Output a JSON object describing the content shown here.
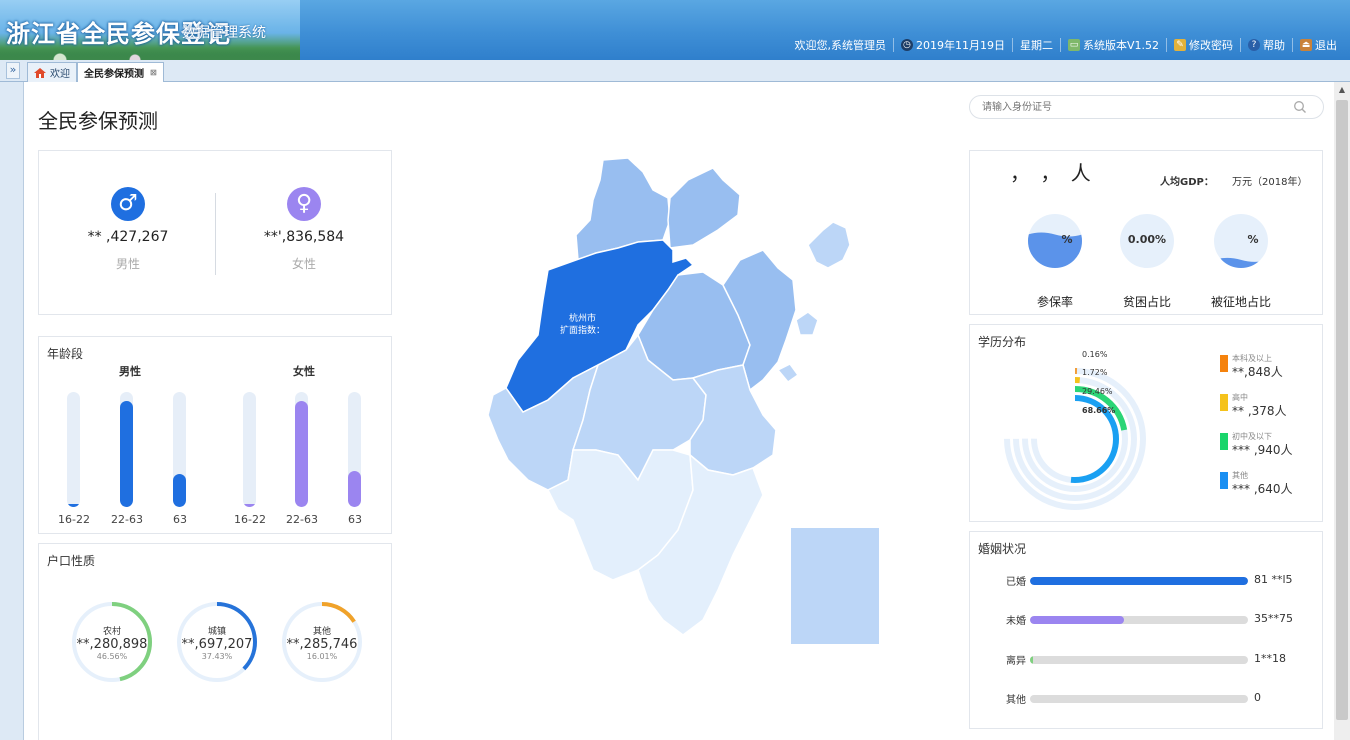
{
  "header": {
    "title": "浙江省全民参保登记",
    "subtitle": "数据管理系统",
    "welcome": "欢迎您,系统管理员",
    "date": "2019年11月19日",
    "weekday": "星期二",
    "version": "系统版本V1.52",
    "change_password": "修改密码",
    "help": "帮助",
    "logout": "退出"
  },
  "tabs": [
    {
      "label": "欢迎"
    },
    {
      "label": "全民参保预测"
    }
  ],
  "page_title": "全民参保预测",
  "gender": {
    "male": {
      "value": "** ,427,267",
      "label": "男性"
    },
    "female": {
      "value": "**',836,584",
      "label": "女性"
    },
    "colors": {
      "male": "#1f6fe0",
      "female": "#9b85f0"
    }
  },
  "age": {
    "title": "年龄段",
    "male_label": "男性",
    "female_label": "女性",
    "ticks": [
      "16-22",
      "22-63",
      "63"
    ],
    "male_fill": [
      0.03,
      0.92,
      0.29
    ],
    "female_fill": [
      0.03,
      0.92,
      0.31
    ]
  },
  "hukou": {
    "title": "户口性质",
    "items": [
      {
        "name": "农村",
        "value": "**,280,898",
        "pct": "46.56%",
        "fraction": 0.4656,
        "color": "#7fd07f"
      },
      {
        "name": "城镇",
        "value": "**,697,207",
        "pct": "37.43%",
        "fraction": 0.3743,
        "color": "#2673d9"
      },
      {
        "name": "其他",
        "value": "**,285,746",
        "pct": "16.01%",
        "fraction": 0.1601,
        "color": "#f0a22a"
      }
    ]
  },
  "map": {
    "city": "杭州市",
    "expansion_label": "扩面指数："
  },
  "search": {
    "placeholder": "请输入身份证号"
  },
  "stats": {
    "population": "，  ，  人",
    "gdp_label": "人均GDP：",
    "gdp_unit": "万元（2018年）",
    "balls": [
      {
        "label": "参保率",
        "text": "%",
        "level": 0.62
      },
      {
        "label": "贫困占比",
        "text": "0.00%",
        "level": 0.0
      },
      {
        "label": "被征地占比",
        "text": "%",
        "level": 0.15
      }
    ]
  },
  "education": {
    "title": "学历分布",
    "rings": [
      {
        "pct": "0.16%",
        "fraction": 0.0016,
        "color": "#f29d38"
      },
      {
        "pct": "1.72%",
        "fraction": 0.0172,
        "color": "#f5c21b"
      },
      {
        "pct": "29.46%",
        "fraction": 0.2946,
        "color": "#2bd576"
      },
      {
        "pct": "68.66%",
        "fraction": 0.6866,
        "color": "#1aa0f2"
      }
    ],
    "legend": [
      {
        "name": "本科及以上",
        "value": "**,848人",
        "color": "#f5820d"
      },
      {
        "name": "高中",
        "value": "** ,378人",
        "color": "#f5c21b"
      },
      {
        "name": "初中及以下",
        "value": "*** ,940人",
        "color": "#19d56b"
      },
      {
        "name": "其他",
        "value": "*** ,640人",
        "color": "#1a8ff2"
      }
    ]
  },
  "marriage": {
    "title": "婚姻状况",
    "items": [
      {
        "label": "已婚",
        "value": "81 **l5",
        "fraction": 1.0,
        "color": "#1f6fe0"
      },
      {
        "label": "未婚",
        "value": "35**75",
        "fraction": 0.43,
        "color": "#9b85f0"
      },
      {
        "label": "离异",
        "value": "1**18",
        "fraction": 0.015,
        "color": "#7fd07f"
      },
      {
        "label": "其他",
        "value": "0",
        "fraction": 0.0,
        "color": "#dcdcdc"
      }
    ]
  }
}
